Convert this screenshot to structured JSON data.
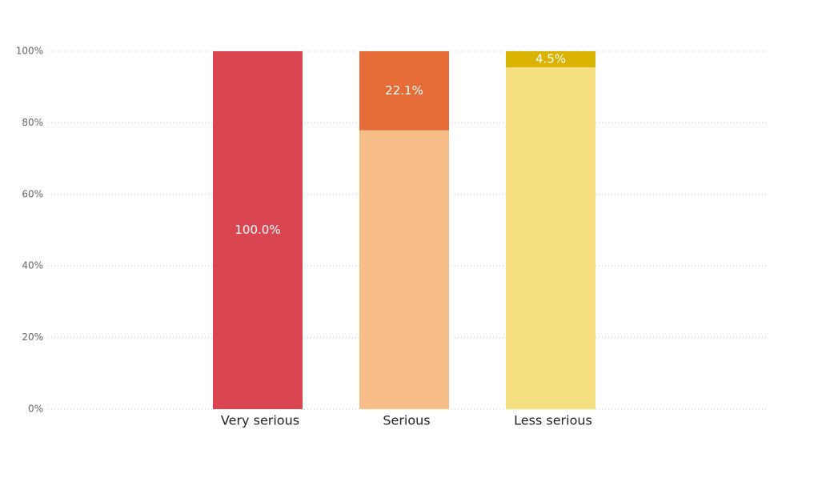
{
  "chart_data": {
    "type": "stacked_bar",
    "categories": [
      "Very serious",
      "Serious",
      "Less serious"
    ],
    "series": [
      {
        "color": "#d9464f",
        "values": [
          100,
          null,
          null
        ],
        "value_labels": [
          "100.0%",
          null,
          null
        ]
      },
      {
        "color": "#f8be87",
        "values": [
          null,
          77.9,
          null
        ]
      },
      {
        "color": "#e66c37",
        "values": [
          null,
          22.1,
          null
        ],
        "value_labels": [
          null,
          "22.1%",
          null
        ]
      },
      {
        "color": "#f5df80",
        "values": [
          null,
          null,
          95.5
        ]
      },
      {
        "color": "#d9b300",
        "values": [
          null,
          null,
          4.5
        ],
        "value_labels": [
          null,
          null,
          "4.5%"
        ]
      }
    ],
    "ylim": [
      0,
      100
    ],
    "yticks": [
      {
        "value": 0,
        "label": "0%"
      },
      {
        "value": 20,
        "label": "20%"
      },
      {
        "value": 40,
        "label": "40%"
      },
      {
        "value": 60,
        "label": "60%"
      },
      {
        "value": 80,
        "label": "80%"
      },
      {
        "value": 100,
        "label": "100%"
      }
    ],
    "grid": true
  }
}
